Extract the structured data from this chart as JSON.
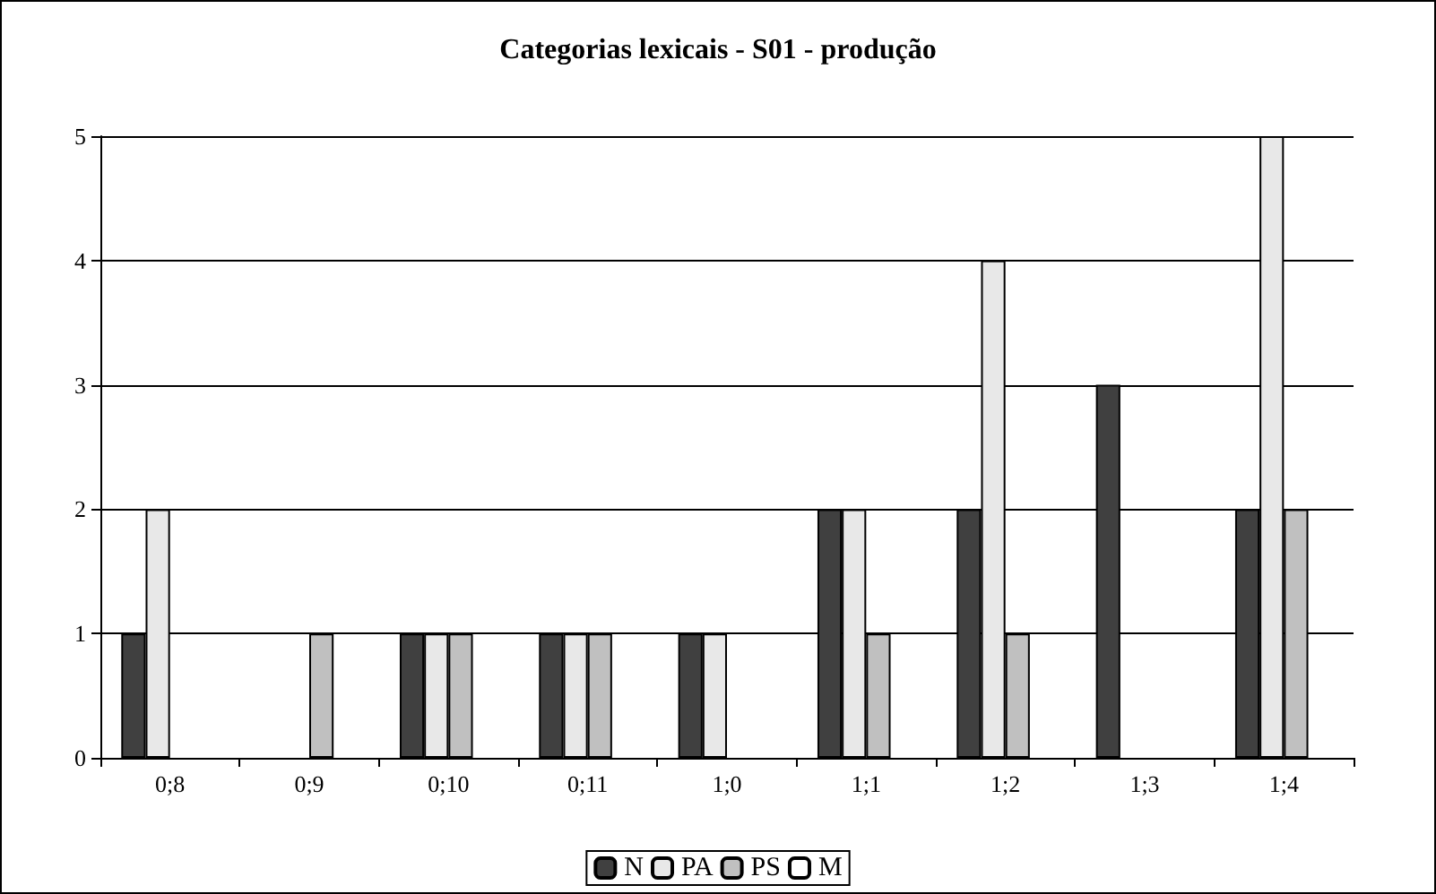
{
  "chart_data": {
    "type": "bar",
    "title": "Categorias lexicais - S01 - produção",
    "categories": [
      "0;8",
      "0;9",
      "0;10",
      "0;11",
      "1;0",
      "1;1",
      "1;2",
      "1;3",
      "1;4"
    ],
    "series": [
      {
        "name": "N",
        "color": "#404040",
        "values": [
          1,
          null,
          1,
          1,
          1,
          2,
          2,
          3,
          2
        ]
      },
      {
        "name": "PA",
        "color": "#e8e8e8",
        "values": [
          2,
          null,
          1,
          1,
          1,
          2,
          4,
          null,
          5
        ]
      },
      {
        "name": "PS",
        "color": "#c0c0c0",
        "values": [
          null,
          1,
          1,
          1,
          null,
          1,
          1,
          null,
          2
        ]
      },
      {
        "name": "M",
        "color": "#ffffff",
        "values": [
          null,
          null,
          null,
          null,
          null,
          null,
          null,
          null,
          null
        ]
      }
    ],
    "ylim": [
      0,
      5
    ],
    "yticks": [
      0,
      1,
      2,
      3,
      4,
      5
    ],
    "grid": "y",
    "legend": "bottom"
  }
}
